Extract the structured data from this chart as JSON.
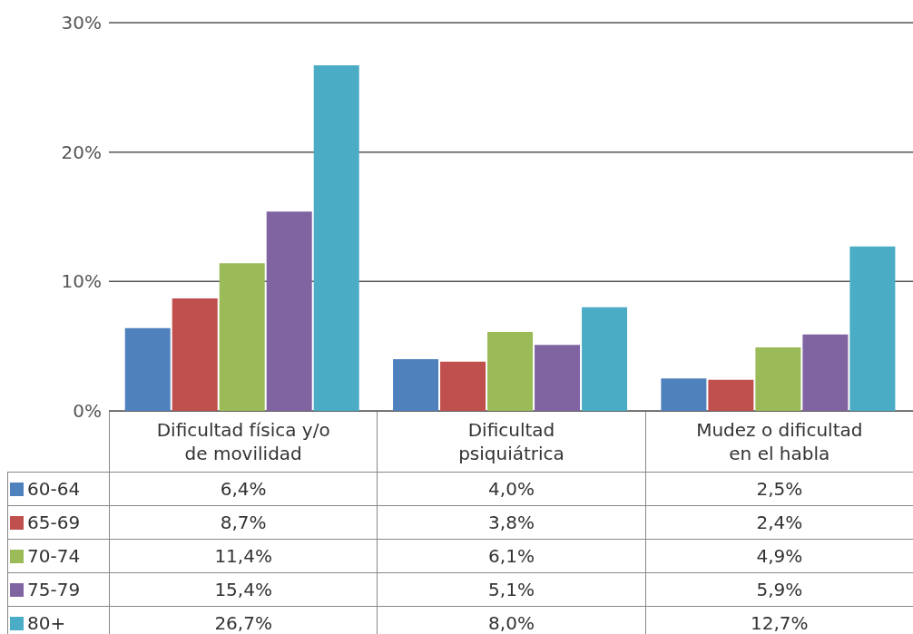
{
  "chart_data": {
    "type": "bar",
    "categories": [
      "Dificultad física y/o de movilidad",
      "Dificultad psiquiátrica",
      "Mudez o dificultad en el habla"
    ],
    "series": [
      {
        "name": "60-64",
        "color": "#4f81bd",
        "values": [
          6.4,
          4.0,
          2.5
        ],
        "value_labels": [
          "6,4%",
          "4,0%",
          "2,5%"
        ]
      },
      {
        "name": "65-69",
        "color": "#c0504d",
        "values": [
          8.7,
          3.8,
          2.4
        ],
        "value_labels": [
          "8,7%",
          "3,8%",
          "2,4%"
        ]
      },
      {
        "name": "70-74",
        "color": "#9bbb59",
        "values": [
          11.4,
          6.1,
          4.9
        ],
        "value_labels": [
          "11,4%",
          "6,1%",
          "4,9%"
        ]
      },
      {
        "name": "75-79",
        "color": "#8064a2",
        "values": [
          15.4,
          5.1,
          5.9
        ],
        "value_labels": [
          "15,4%",
          "5,1%",
          "5,9%"
        ]
      },
      {
        "name": "80+",
        "color": "#4bacc6",
        "values": [
          26.7,
          8.0,
          12.7
        ],
        "value_labels": [
          "26,7%",
          "8,0%",
          "12,7%"
        ]
      }
    ],
    "ylim": [
      0,
      30
    ],
    "yticks": [
      {
        "value": 0,
        "label": "0%"
      },
      {
        "value": 10,
        "label": "10%"
      },
      {
        "value": 20,
        "label": "20%"
      },
      {
        "value": 30,
        "label": "30%"
      }
    ],
    "grid": "y",
    "legend": "bottom left"
  }
}
